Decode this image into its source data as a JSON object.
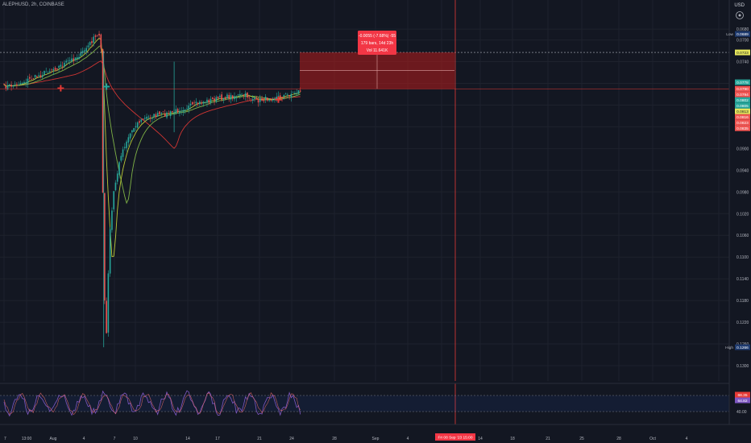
{
  "header": {
    "symbol": "ALEPHUSD, 2h, COINBASE",
    "currency": "USD"
  },
  "measure_box": {
    "line1": "-0.0055 (-7.68%) -55",
    "line2": "179 bars, 14d 23h",
    "line3": "Vol 11.641K"
  },
  "crosshair_time": "Fri 08 Sep '23   15:00",
  "colors": {
    "up": "#26a69a",
    "down": "#ef5350",
    "grid": "#1e222d",
    "rsi": "#7e57c2",
    "ma_slow": "#e53935",
    "ma_mid": "#8bc34a",
    "ma_fast": "#cddc39"
  },
  "chart_data": {
    "type": "line",
    "note_axis": "inverted",
    "price_axis": {
      "ticks": [
        "0.0680",
        "0.0700",
        "0.0740",
        "0.0780",
        "0.0820",
        "0.0860",
        "0.0900",
        "0.0940",
        "0.0980",
        "0.1020",
        "0.1060",
        "0.1100",
        "0.1140",
        "0.1180",
        "0.1220",
        "0.1260",
        "0.1300"
      ],
      "labels": [
        {
          "text": "Low",
          "value": "0.0689",
          "color": "#1e3a6e"
        },
        {
          "text": "",
          "value": "0.0723",
          "color": "#e6e65c"
        },
        {
          "text": "",
          "value": "0.0778",
          "color": "#26a69a"
        },
        {
          "text": "",
          "value": "0.0790",
          "color": "#ef5350"
        },
        {
          "text": "",
          "value": "0.0794",
          "color": "#ef5350"
        },
        {
          "text": "",
          "value": "0.0802",
          "color": "#26a69a"
        },
        {
          "text": "",
          "value": "0.0805",
          "color": "#26a69a"
        },
        {
          "text": "",
          "value": "0.0813",
          "color": "#e6e65c"
        },
        {
          "text": "",
          "value": "0.0816",
          "color": "#ef5350"
        },
        {
          "text": "",
          "value": "0.0823",
          "color": "#ef5350"
        },
        {
          "text": "",
          "value": "0.0835",
          "color": "#ef5350"
        },
        {
          "text": "High",
          "value": "0.1266",
          "color": "#1e3a6e"
        }
      ]
    },
    "time_axis": [
      "7",
      "13:00",
      "Aug",
      "4",
      "7",
      "10",
      "14",
      "17",
      "21",
      "24",
      "28",
      "Sep",
      "4",
      "11",
      "14",
      "18",
      "21",
      "25",
      "28",
      "Oct",
      "4"
    ],
    "rsi": {
      "ticks": [
        "60.00",
        "40.00"
      ],
      "labels": [
        "68.35",
        "64.82"
      ]
    },
    "price_path": [
      [
        0,
        0.0786
      ],
      [
        6,
        0.0783
      ],
      [
        12,
        0.0775
      ],
      [
        18,
        0.0767
      ],
      [
        24,
        0.0757
      ],
      [
        30,
        0.0749
      ],
      [
        36,
        0.0738
      ],
      [
        42,
        0.0726
      ],
      [
        46,
        0.0711
      ],
      [
        49,
        0.0698
      ],
      [
        51,
        0.0693
      ],
      [
        52.5,
        0.0689
      ],
      [
        53,
        0.0712
      ],
      [
        55,
        0.125
      ],
      [
        56,
        0.1266
      ],
      [
        58,
        0.105
      ],
      [
        60,
        0.098
      ],
      [
        64,
        0.091
      ],
      [
        68,
        0.0878
      ],
      [
        72,
        0.0855
      ],
      [
        78,
        0.0843
      ],
      [
        84,
        0.0838
      ],
      [
        90,
        0.0836
      ],
      [
        96,
        0.0828
      ],
      [
        102,
        0.0822
      ],
      [
        108,
        0.0815
      ],
      [
        114,
        0.081
      ],
      [
        120,
        0.0806
      ],
      [
        126,
        0.0803
      ],
      [
        132,
        0.0802
      ],
      [
        138,
        0.0812
      ],
      [
        144,
        0.0808
      ],
      [
        150,
        0.0805
      ],
      [
        156,
        0.08
      ],
      [
        162,
        0.0793
      ]
    ]
  }
}
